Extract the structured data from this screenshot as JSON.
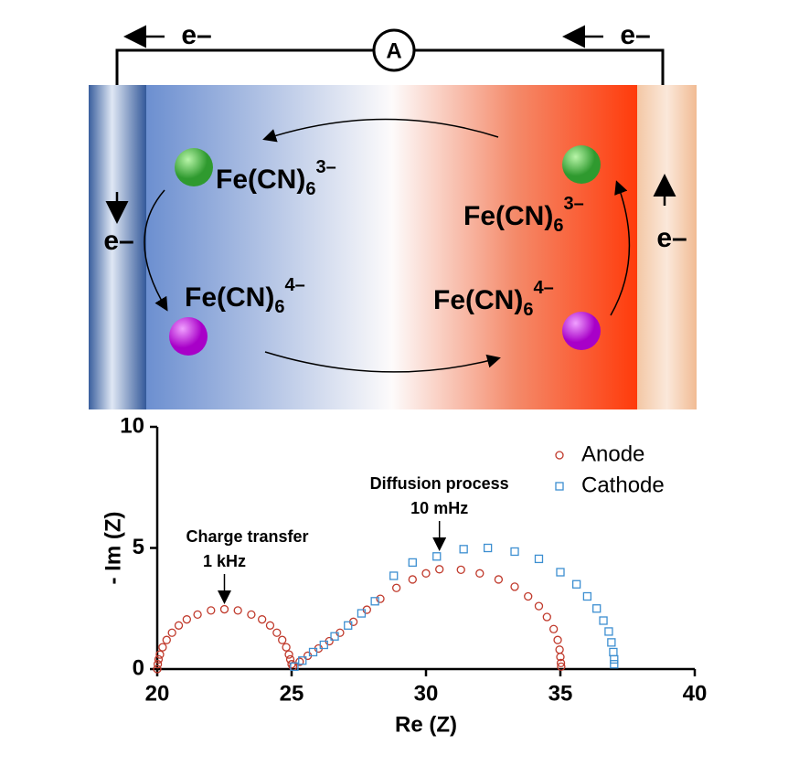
{
  "diagram": {
    "ammeter": "A",
    "electron_labels": [
      "e–",
      "e–",
      "e–",
      "e–"
    ],
    "species": [
      {
        "base": "Fe(CN)",
        "sub": "6",
        "sup": "3–"
      },
      {
        "base": "Fe(CN)",
        "sub": "6",
        "sup": "4–"
      },
      {
        "base": "Fe(CN)",
        "sub": "6",
        "sup": "3–"
      },
      {
        "base": "Fe(CN)",
        "sub": "6",
        "sup": "4–"
      }
    ]
  },
  "chart_data": {
    "type": "scatter",
    "x_label": "Re (Z)",
    "y_label": "- Im (Z)",
    "xlim": [
      20,
      40
    ],
    "xticks": [
      20,
      25,
      30,
      35,
      40
    ],
    "ylim": [
      0,
      10
    ],
    "yticks": [
      0,
      5,
      10
    ],
    "legend": "upper right",
    "annotations": [
      {
        "lines": [
          "Charge  transfer",
          "1 kHz"
        ],
        "x": 22.5
      },
      {
        "lines": [
          "Diffusion process",
          "10 mHz"
        ],
        "x": 30.5
      }
    ],
    "series": [
      {
        "name": "Anode",
        "color": "#c0392b",
        "marker": "circle",
        "x": [
          20.0,
          20.02,
          20.05,
          20.1,
          20.2,
          20.35,
          20.55,
          20.8,
          21.1,
          21.5,
          22.0,
          22.5,
          23.0,
          23.5,
          23.9,
          24.2,
          24.45,
          24.65,
          24.8,
          24.9,
          24.95,
          25.0,
          25.05,
          25.3,
          25.6,
          26.0,
          26.4,
          26.8,
          27.3,
          27.8,
          28.3,
          28.9,
          29.5,
          30.0,
          30.5,
          31.3,
          32.0,
          32.7,
          33.3,
          33.8,
          34.2,
          34.5,
          34.75,
          34.9,
          34.97,
          35.0,
          35.02,
          35.03
        ],
        "y": [
          0,
          0.2,
          0.4,
          0.6,
          0.9,
          1.2,
          1.5,
          1.8,
          2.05,
          2.25,
          2.42,
          2.47,
          2.42,
          2.25,
          2.05,
          1.8,
          1.5,
          1.2,
          0.9,
          0.6,
          0.4,
          0.2,
          0.1,
          0.3,
          0.55,
          0.85,
          1.15,
          1.5,
          1.95,
          2.45,
          2.9,
          3.35,
          3.7,
          3.95,
          4.12,
          4.1,
          3.95,
          3.7,
          3.4,
          3.0,
          2.6,
          2.15,
          1.65,
          1.2,
          0.8,
          0.5,
          0.25,
          0.1
        ]
      },
      {
        "name": "Cathode",
        "color": "#3d8fd1",
        "marker": "square",
        "x": [
          25.1,
          25.4,
          25.8,
          26.2,
          26.6,
          27.1,
          27.6,
          28.1,
          28.8,
          29.5,
          30.4,
          31.4,
          32.3,
          33.3,
          34.2,
          35.0,
          35.6,
          36.0,
          36.35,
          36.6,
          36.8,
          36.9,
          36.97,
          37.0,
          37.0
        ],
        "y": [
          0.1,
          0.35,
          0.7,
          1.0,
          1.35,
          1.8,
          2.3,
          2.8,
          3.85,
          4.4,
          4.65,
          4.95,
          5.0,
          4.85,
          4.55,
          4.0,
          3.5,
          3.0,
          2.5,
          2.0,
          1.55,
          1.1,
          0.7,
          0.4,
          0.2
        ]
      }
    ]
  }
}
